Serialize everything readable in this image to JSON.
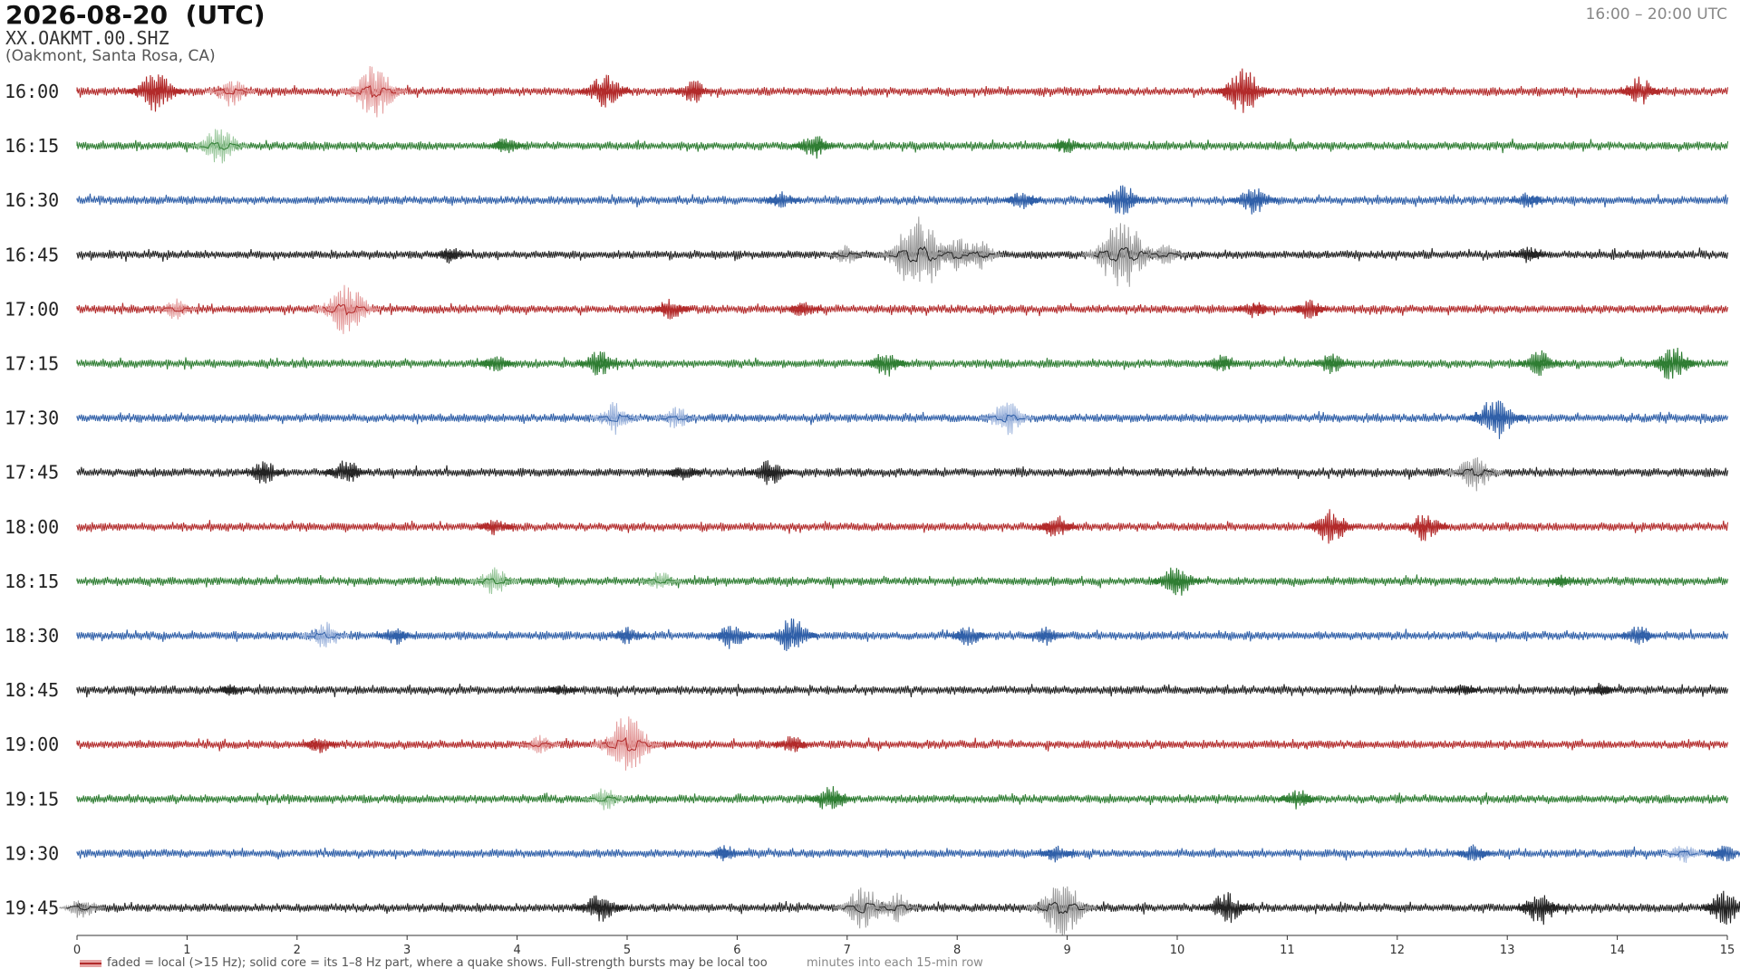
{
  "header": {
    "title": "2026-08-20  (UTC)",
    "station": "XX.OAKMT.00.SHZ",
    "location": "(Oakmont, Santa Rosa, CA)",
    "range": "16:00 – 20:00 UTC"
  },
  "legend": {
    "text": "faded = local (>15 Hz); solid core = its 1–8 Hz part, where a quake shows. Full-strength bursts may be local too"
  },
  "colors": {
    "red": "#b22a2a",
    "green": "#2e7d32",
    "blue": "#2f5fa8",
    "black": "#222222",
    "red_faded": "#e39a9a",
    "green_faded": "#99c79b",
    "blue_faded": "#9db4dc",
    "black_faded": "#9a9a9a"
  },
  "chart_data": {
    "type": "line",
    "title": "2026-08-20  (UTC)",
    "xlabel": "minutes into each 15-min row",
    "ylabel": "",
    "xlim": [
      0,
      15
    ],
    "x_ticks": [
      0,
      1,
      2,
      3,
      4,
      5,
      6,
      7,
      8,
      9,
      10,
      11,
      12,
      13,
      14,
      15
    ],
    "row_minutes": 15,
    "color_cycle": [
      "red",
      "green",
      "blue",
      "black"
    ],
    "rows": [
      {
        "label": "16:00",
        "bursts": [
          {
            "t": 0.72,
            "amp": 0.7,
            "faded": false
          },
          {
            "t": 1.4,
            "amp": 0.5,
            "faded": true
          },
          {
            "t": 2.7,
            "amp": 0.9,
            "faded": true
          },
          {
            "t": 4.8,
            "amp": 0.6,
            "faded": false
          },
          {
            "t": 5.6,
            "amp": 0.4,
            "faded": false
          },
          {
            "t": 10.6,
            "amp": 0.75,
            "faded": false
          },
          {
            "t": 14.2,
            "amp": 0.5,
            "faded": false
          }
        ]
      },
      {
        "label": "16:15",
        "bursts": [
          {
            "t": 1.3,
            "amp": 0.65,
            "faded": true
          },
          {
            "t": 3.9,
            "amp": 0.3,
            "faded": false
          },
          {
            "t": 6.7,
            "amp": 0.45,
            "faded": false
          },
          {
            "t": 9.0,
            "amp": 0.25,
            "faded": false
          }
        ]
      },
      {
        "label": "16:30",
        "bursts": [
          {
            "t": 6.4,
            "amp": 0.3,
            "faded": false
          },
          {
            "t": 8.6,
            "amp": 0.35,
            "faded": false
          },
          {
            "t": 9.5,
            "amp": 0.55,
            "faded": false
          },
          {
            "t": 10.7,
            "amp": 0.5,
            "faded": false
          },
          {
            "t": 13.2,
            "amp": 0.3,
            "faded": false
          }
        ]
      },
      {
        "label": "16:45",
        "bursts": [
          {
            "t": 3.4,
            "amp": 0.3,
            "faded": false
          },
          {
            "t": 7.0,
            "amp": 0.35,
            "faded": true
          },
          {
            "t": 7.65,
            "amp": 1.3,
            "faded": true
          },
          {
            "t": 8.0,
            "amp": 0.6,
            "faded": true
          },
          {
            "t": 8.2,
            "amp": 0.5,
            "faded": true
          },
          {
            "t": 9.5,
            "amp": 1.2,
            "faded": true
          },
          {
            "t": 9.9,
            "amp": 0.35,
            "faded": true
          },
          {
            "t": 13.2,
            "amp": 0.3,
            "faded": false
          }
        ]
      },
      {
        "label": "17:00",
        "bursts": [
          {
            "t": 0.9,
            "amp": 0.35,
            "faded": true
          },
          {
            "t": 2.45,
            "amp": 0.9,
            "faded": true
          },
          {
            "t": 5.4,
            "amp": 0.35,
            "faded": false
          },
          {
            "t": 6.6,
            "amp": 0.3,
            "faded": false
          },
          {
            "t": 10.7,
            "amp": 0.3,
            "faded": false
          },
          {
            "t": 11.2,
            "amp": 0.35,
            "faded": false
          }
        ]
      },
      {
        "label": "17:15",
        "bursts": [
          {
            "t": 3.8,
            "amp": 0.3,
            "faded": false
          },
          {
            "t": 4.75,
            "amp": 0.45,
            "faded": false
          },
          {
            "t": 7.35,
            "amp": 0.45,
            "faded": false
          },
          {
            "t": 10.4,
            "amp": 0.3,
            "faded": false
          },
          {
            "t": 11.4,
            "amp": 0.35,
            "faded": false
          },
          {
            "t": 13.3,
            "amp": 0.45,
            "faded": false
          },
          {
            "t": 14.5,
            "amp": 0.6,
            "faded": false
          }
        ]
      },
      {
        "label": "17:30",
        "bursts": [
          {
            "t": 4.9,
            "amp": 0.55,
            "faded": true
          },
          {
            "t": 5.45,
            "amp": 0.4,
            "faded": true
          },
          {
            "t": 8.45,
            "amp": 0.6,
            "faded": true
          },
          {
            "t": 12.9,
            "amp": 0.75,
            "faded": false
          }
        ]
      },
      {
        "label": "17:45",
        "bursts": [
          {
            "t": 1.7,
            "amp": 0.4,
            "faded": false
          },
          {
            "t": 2.45,
            "amp": 0.45,
            "faded": false
          },
          {
            "t": 5.5,
            "amp": 0.3,
            "faded": false
          },
          {
            "t": 6.3,
            "amp": 0.45,
            "faded": false
          },
          {
            "t": 12.7,
            "amp": 0.65,
            "faded": true
          }
        ]
      },
      {
        "label": "18:00",
        "bursts": [
          {
            "t": 3.8,
            "amp": 0.3,
            "faded": false
          },
          {
            "t": 8.9,
            "amp": 0.4,
            "faded": false
          },
          {
            "t": 11.4,
            "amp": 0.6,
            "faded": false
          },
          {
            "t": 12.25,
            "amp": 0.5,
            "faded": false
          }
        ]
      },
      {
        "label": "18:15",
        "bursts": [
          {
            "t": 3.8,
            "amp": 0.5,
            "faded": true
          },
          {
            "t": 5.3,
            "amp": 0.35,
            "faded": true
          },
          {
            "t": 10.0,
            "amp": 0.55,
            "faded": false
          },
          {
            "t": 13.5,
            "amp": 0.25,
            "faded": false
          }
        ]
      },
      {
        "label": "18:30",
        "bursts": [
          {
            "t": 2.25,
            "amp": 0.5,
            "faded": true
          },
          {
            "t": 2.9,
            "amp": 0.3,
            "faded": false
          },
          {
            "t": 5.0,
            "amp": 0.3,
            "faded": false
          },
          {
            "t": 5.95,
            "amp": 0.45,
            "faded": false
          },
          {
            "t": 6.5,
            "amp": 0.6,
            "faded": false
          },
          {
            "t": 8.1,
            "amp": 0.35,
            "faded": false
          },
          {
            "t": 8.8,
            "amp": 0.35,
            "faded": false
          },
          {
            "t": 14.2,
            "amp": 0.35,
            "faded": false
          }
        ]
      },
      {
        "label": "18:45",
        "bursts": [
          {
            "t": 1.4,
            "amp": 0.2,
            "faded": false
          },
          {
            "t": 4.4,
            "amp": 0.2,
            "faded": false
          },
          {
            "t": 12.6,
            "amp": 0.2,
            "faded": false
          },
          {
            "t": 13.85,
            "amp": 0.25,
            "faded": false
          }
        ]
      },
      {
        "label": "19:00",
        "bursts": [
          {
            "t": 2.2,
            "amp": 0.3,
            "faded": false
          },
          {
            "t": 4.2,
            "amp": 0.35,
            "faded": true
          },
          {
            "t": 5.0,
            "amp": 1.0,
            "faded": true
          },
          {
            "t": 6.5,
            "amp": 0.3,
            "faded": false
          }
        ]
      },
      {
        "label": "19:15",
        "bursts": [
          {
            "t": 4.8,
            "amp": 0.4,
            "faded": true
          },
          {
            "t": 6.85,
            "amp": 0.5,
            "faded": false
          },
          {
            "t": 11.1,
            "amp": 0.35,
            "faded": false
          }
        ]
      },
      {
        "label": "19:30",
        "bursts": [
          {
            "t": 5.9,
            "amp": 0.3,
            "faded": false
          },
          {
            "t": 8.9,
            "amp": 0.3,
            "faded": false
          },
          {
            "t": 12.7,
            "amp": 0.3,
            "faded": false
          },
          {
            "t": 14.6,
            "amp": 0.35,
            "faded": true
          },
          {
            "t": 14.98,
            "amp": 0.3,
            "faded": false
          }
        ]
      },
      {
        "label": "19:45",
        "bursts": [
          {
            "t": 0.05,
            "amp": 0.4,
            "faded": true
          },
          {
            "t": 4.75,
            "amp": 0.55,
            "faded": false
          },
          {
            "t": 7.15,
            "amp": 0.75,
            "faded": true
          },
          {
            "t": 7.45,
            "amp": 0.5,
            "faded": true
          },
          {
            "t": 8.95,
            "amp": 0.95,
            "faded": true
          },
          {
            "t": 10.45,
            "amp": 0.55,
            "faded": false
          },
          {
            "t": 13.3,
            "amp": 0.6,
            "faded": false
          },
          {
            "t": 14.98,
            "amp": 0.6,
            "faded": false
          }
        ]
      }
    ]
  }
}
